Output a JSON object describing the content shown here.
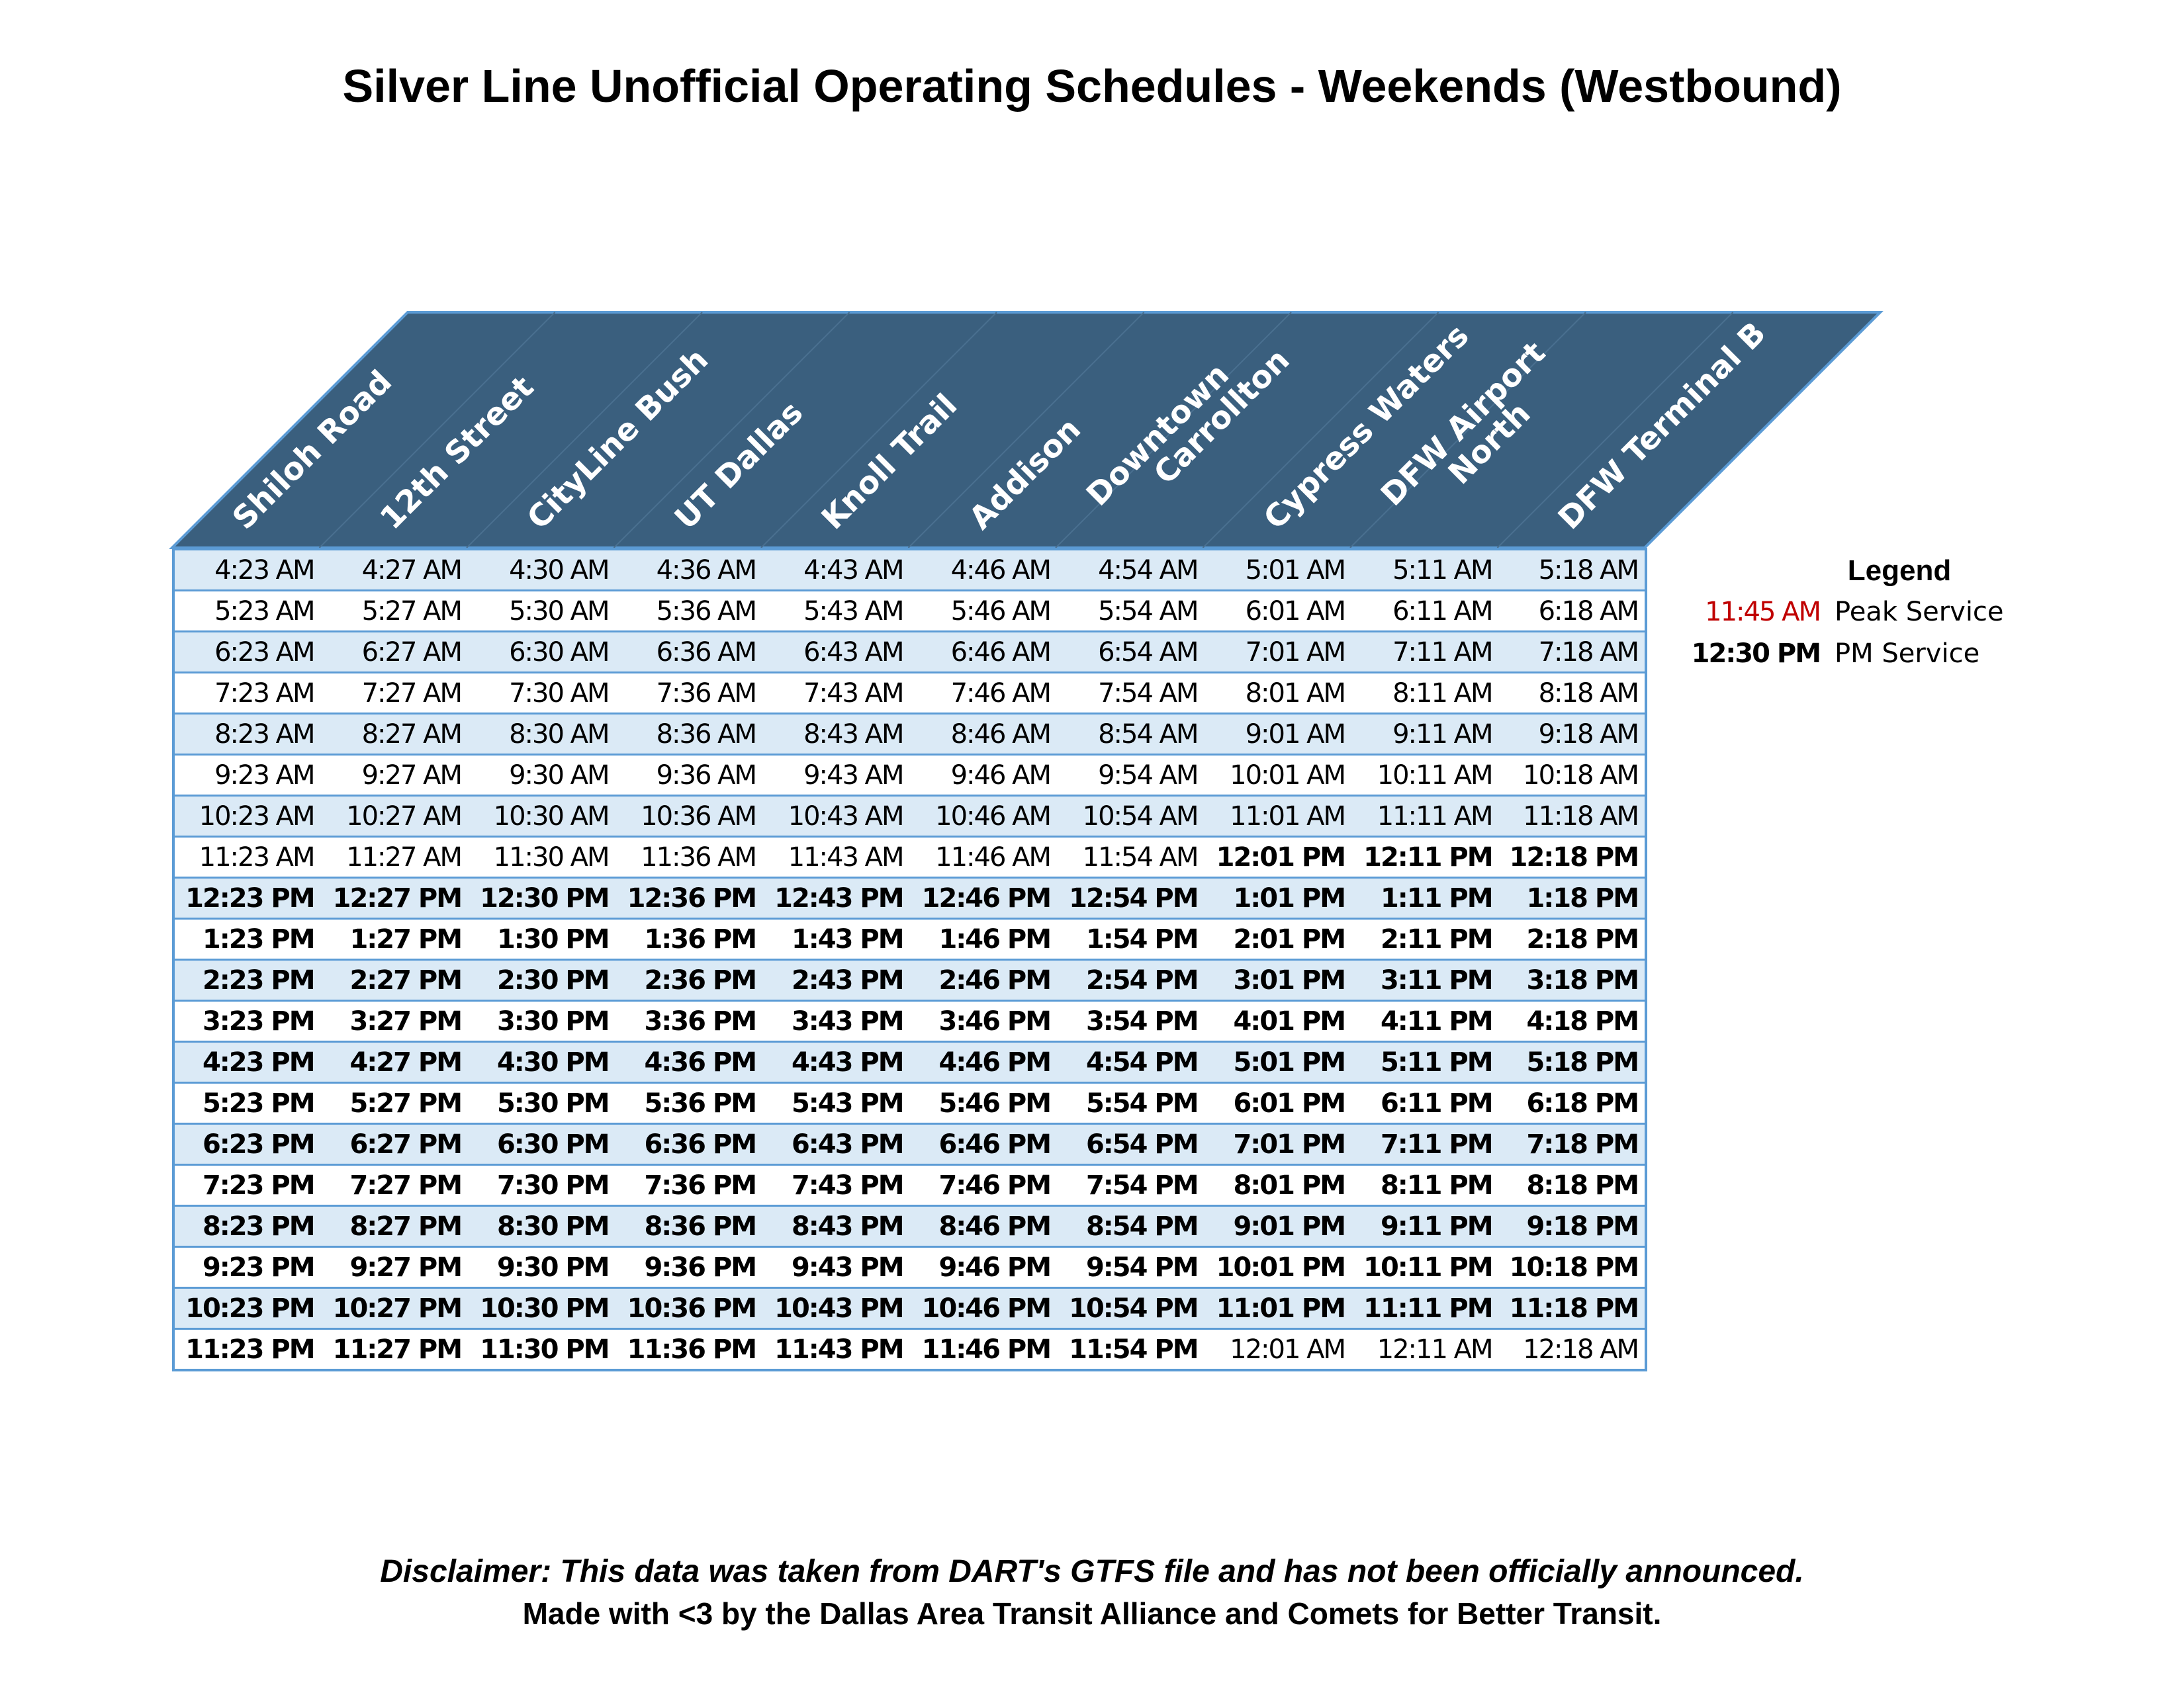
{
  "title": "Silver Line Unofficial Operating Schedules - Weekends (Westbound)",
  "stations": [
    [
      "Shiloh Road"
    ],
    [
      "12th Street"
    ],
    [
      "CityLine Bush"
    ],
    [
      "UT Dallas"
    ],
    [
      "Knoll Trail"
    ],
    [
      "Addison"
    ],
    [
      "Downtown",
      "Carrollton"
    ],
    [
      "Cypress Waters"
    ],
    [
      "DFW Airport",
      "North"
    ],
    [
      "DFW Terminal B"
    ]
  ],
  "colors": {
    "header_fill": "#3a5f7e",
    "header_divider": "#4a7090",
    "border": "#5b9bd5",
    "band": "#dbeaf6",
    "peak": "#c00000"
  },
  "schedule": [
    {
      "times": [
        "4:23 AM",
        "4:27 AM",
        "4:30 AM",
        "4:36 AM",
        "4:43 AM",
        "4:46 AM",
        "4:54 AM",
        "5:01 AM",
        "5:11 AM",
        "5:18 AM"
      ],
      "pm": [
        false,
        false,
        false,
        false,
        false,
        false,
        false,
        false,
        false,
        false
      ]
    },
    {
      "times": [
        "5:23 AM",
        "5:27 AM",
        "5:30 AM",
        "5:36 AM",
        "5:43 AM",
        "5:46 AM",
        "5:54 AM",
        "6:01 AM",
        "6:11 AM",
        "6:18 AM"
      ],
      "pm": [
        false,
        false,
        false,
        false,
        false,
        false,
        false,
        false,
        false,
        false
      ]
    },
    {
      "times": [
        "6:23 AM",
        "6:27 AM",
        "6:30 AM",
        "6:36 AM",
        "6:43 AM",
        "6:46 AM",
        "6:54 AM",
        "7:01 AM",
        "7:11 AM",
        "7:18 AM"
      ],
      "pm": [
        false,
        false,
        false,
        false,
        false,
        false,
        false,
        false,
        false,
        false
      ]
    },
    {
      "times": [
        "7:23 AM",
        "7:27 AM",
        "7:30 AM",
        "7:36 AM",
        "7:43 AM",
        "7:46 AM",
        "7:54 AM",
        "8:01 AM",
        "8:11 AM",
        "8:18 AM"
      ],
      "pm": [
        false,
        false,
        false,
        false,
        false,
        false,
        false,
        false,
        false,
        false
      ]
    },
    {
      "times": [
        "8:23 AM",
        "8:27 AM",
        "8:30 AM",
        "8:36 AM",
        "8:43 AM",
        "8:46 AM",
        "8:54 AM",
        "9:01 AM",
        "9:11 AM",
        "9:18 AM"
      ],
      "pm": [
        false,
        false,
        false,
        false,
        false,
        false,
        false,
        false,
        false,
        false
      ]
    },
    {
      "times": [
        "9:23 AM",
        "9:27 AM",
        "9:30 AM",
        "9:36 AM",
        "9:43 AM",
        "9:46 AM",
        "9:54 AM",
        "10:01 AM",
        "10:11 AM",
        "10:18 AM"
      ],
      "pm": [
        false,
        false,
        false,
        false,
        false,
        false,
        false,
        false,
        false,
        false
      ]
    },
    {
      "times": [
        "10:23 AM",
        "10:27 AM",
        "10:30 AM",
        "10:36 AM",
        "10:43 AM",
        "10:46 AM",
        "10:54 AM",
        "11:01 AM",
        "11:11 AM",
        "11:18 AM"
      ],
      "pm": [
        false,
        false,
        false,
        false,
        false,
        false,
        false,
        false,
        false,
        false
      ]
    },
    {
      "times": [
        "11:23 AM",
        "11:27 AM",
        "11:30 AM",
        "11:36 AM",
        "11:43 AM",
        "11:46 AM",
        "11:54 AM",
        "12:01 PM",
        "12:11 PM",
        "12:18 PM"
      ],
      "pm": [
        false,
        false,
        false,
        false,
        false,
        false,
        false,
        true,
        true,
        true
      ]
    },
    {
      "times": [
        "12:23 PM",
        "12:27 PM",
        "12:30 PM",
        "12:36 PM",
        "12:43 PM",
        "12:46 PM",
        "12:54 PM",
        "1:01 PM",
        "1:11 PM",
        "1:18 PM"
      ],
      "pm": [
        true,
        true,
        true,
        true,
        true,
        true,
        true,
        true,
        true,
        true
      ]
    },
    {
      "times": [
        "1:23 PM",
        "1:27 PM",
        "1:30 PM",
        "1:36 PM",
        "1:43 PM",
        "1:46 PM",
        "1:54 PM",
        "2:01 PM",
        "2:11 PM",
        "2:18 PM"
      ],
      "pm": [
        true,
        true,
        true,
        true,
        true,
        true,
        true,
        true,
        true,
        true
      ]
    },
    {
      "times": [
        "2:23 PM",
        "2:27 PM",
        "2:30 PM",
        "2:36 PM",
        "2:43 PM",
        "2:46 PM",
        "2:54 PM",
        "3:01 PM",
        "3:11 PM",
        "3:18 PM"
      ],
      "pm": [
        true,
        true,
        true,
        true,
        true,
        true,
        true,
        true,
        true,
        true
      ]
    },
    {
      "times": [
        "3:23 PM",
        "3:27 PM",
        "3:30 PM",
        "3:36 PM",
        "3:43 PM",
        "3:46 PM",
        "3:54 PM",
        "4:01 PM",
        "4:11 PM",
        "4:18 PM"
      ],
      "pm": [
        true,
        true,
        true,
        true,
        true,
        true,
        true,
        true,
        true,
        true
      ]
    },
    {
      "times": [
        "4:23 PM",
        "4:27 PM",
        "4:30 PM",
        "4:36 PM",
        "4:43 PM",
        "4:46 PM",
        "4:54 PM",
        "5:01 PM",
        "5:11 PM",
        "5:18 PM"
      ],
      "pm": [
        true,
        true,
        true,
        true,
        true,
        true,
        true,
        true,
        true,
        true
      ]
    },
    {
      "times": [
        "5:23 PM",
        "5:27 PM",
        "5:30 PM",
        "5:36 PM",
        "5:43 PM",
        "5:46 PM",
        "5:54 PM",
        "6:01 PM",
        "6:11 PM",
        "6:18 PM"
      ],
      "pm": [
        true,
        true,
        true,
        true,
        true,
        true,
        true,
        true,
        true,
        true
      ]
    },
    {
      "times": [
        "6:23 PM",
        "6:27 PM",
        "6:30 PM",
        "6:36 PM",
        "6:43 PM",
        "6:46 PM",
        "6:54 PM",
        "7:01 PM",
        "7:11 PM",
        "7:18 PM"
      ],
      "pm": [
        true,
        true,
        true,
        true,
        true,
        true,
        true,
        true,
        true,
        true
      ]
    },
    {
      "times": [
        "7:23 PM",
        "7:27 PM",
        "7:30 PM",
        "7:36 PM",
        "7:43 PM",
        "7:46 PM",
        "7:54 PM",
        "8:01 PM",
        "8:11 PM",
        "8:18 PM"
      ],
      "pm": [
        true,
        true,
        true,
        true,
        true,
        true,
        true,
        true,
        true,
        true
      ]
    },
    {
      "times": [
        "8:23 PM",
        "8:27 PM",
        "8:30 PM",
        "8:36 PM",
        "8:43 PM",
        "8:46 PM",
        "8:54 PM",
        "9:01 PM",
        "9:11 PM",
        "9:18 PM"
      ],
      "pm": [
        true,
        true,
        true,
        true,
        true,
        true,
        true,
        true,
        true,
        true
      ]
    },
    {
      "times": [
        "9:23 PM",
        "9:27 PM",
        "9:30 PM",
        "9:36 PM",
        "9:43 PM",
        "9:46 PM",
        "9:54 PM",
        "10:01 PM",
        "10:11 PM",
        "10:18 PM"
      ],
      "pm": [
        true,
        true,
        true,
        true,
        true,
        true,
        true,
        true,
        true,
        true
      ]
    },
    {
      "times": [
        "10:23 PM",
        "10:27 PM",
        "10:30 PM",
        "10:36 PM",
        "10:43 PM",
        "10:46 PM",
        "10:54 PM",
        "11:01 PM",
        "11:11 PM",
        "11:18 PM"
      ],
      "pm": [
        true,
        true,
        true,
        true,
        true,
        true,
        true,
        true,
        true,
        true
      ]
    },
    {
      "times": [
        "11:23 PM",
        "11:27 PM",
        "11:30 PM",
        "11:36 PM",
        "11:43 PM",
        "11:46 PM",
        "11:54 PM",
        "12:01 AM",
        "12:11 AM",
        "12:18 AM"
      ],
      "pm": [
        true,
        true,
        true,
        true,
        true,
        true,
        true,
        false,
        false,
        false
      ]
    }
  ],
  "legend": {
    "title": "Legend",
    "peak_sample": "11:45 AM",
    "peak_label": "Peak Service",
    "pm_sample": "12:30 PM",
    "pm_label": "PM Service"
  },
  "footer": {
    "disclaimer": "Disclaimer: This data was taken from DART's GTFS file and has not been officially announced.",
    "credit": "Made with <3 by the Dallas Area Transit Alliance and Comets for Better Transit."
  }
}
